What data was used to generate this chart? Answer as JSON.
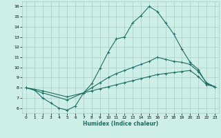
{
  "xlabel": "Humidex (Indice chaleur)",
  "xlim": [
    -0.5,
    23.5
  ],
  "ylim": [
    5.5,
    16.5
  ],
  "xticks": [
    0,
    1,
    2,
    3,
    4,
    5,
    6,
    7,
    8,
    9,
    10,
    11,
    12,
    13,
    14,
    15,
    16,
    17,
    18,
    19,
    20,
    21,
    22,
    23
  ],
  "yticks": [
    6,
    7,
    8,
    9,
    10,
    11,
    12,
    13,
    14,
    15,
    16
  ],
  "bg_color": "#ceeee8",
  "line_color": "#1a6e64",
  "grid_color": "#a8ccc8",
  "line1_x": [
    0,
    1,
    2,
    3,
    4,
    5,
    6,
    7,
    8,
    9,
    10,
    11,
    12,
    13,
    14,
    15,
    16,
    17,
    18,
    19,
    20,
    21,
    22,
    23
  ],
  "line1_y": [
    8.0,
    7.8,
    7.0,
    6.5,
    6.0,
    5.8,
    6.2,
    7.5,
    8.4,
    9.9,
    11.5,
    12.8,
    13.0,
    14.4,
    15.1,
    16.0,
    15.5,
    14.4,
    13.3,
    11.8,
    10.5,
    9.8,
    8.4,
    8.1
  ],
  "line2_x": [
    0,
    2,
    5,
    7,
    8,
    9,
    10,
    11,
    12,
    13,
    14,
    15,
    16,
    17,
    18,
    19,
    20,
    21,
    22,
    23
  ],
  "line2_y": [
    8.0,
    7.5,
    6.8,
    7.5,
    8.0,
    8.5,
    9.0,
    9.4,
    9.7,
    10.0,
    10.3,
    10.6,
    11.0,
    10.8,
    10.6,
    10.5,
    10.3,
    9.6,
    8.5,
    8.1
  ],
  "line3_x": [
    0,
    2,
    5,
    7,
    8,
    9,
    10,
    11,
    12,
    13,
    14,
    15,
    16,
    17,
    18,
    19,
    20,
    21,
    22,
    23
  ],
  "line3_y": [
    8.0,
    7.7,
    7.1,
    7.5,
    7.7,
    7.9,
    8.1,
    8.3,
    8.5,
    8.7,
    8.9,
    9.1,
    9.3,
    9.4,
    9.5,
    9.6,
    9.7,
    9.1,
    8.3,
    8.1
  ]
}
